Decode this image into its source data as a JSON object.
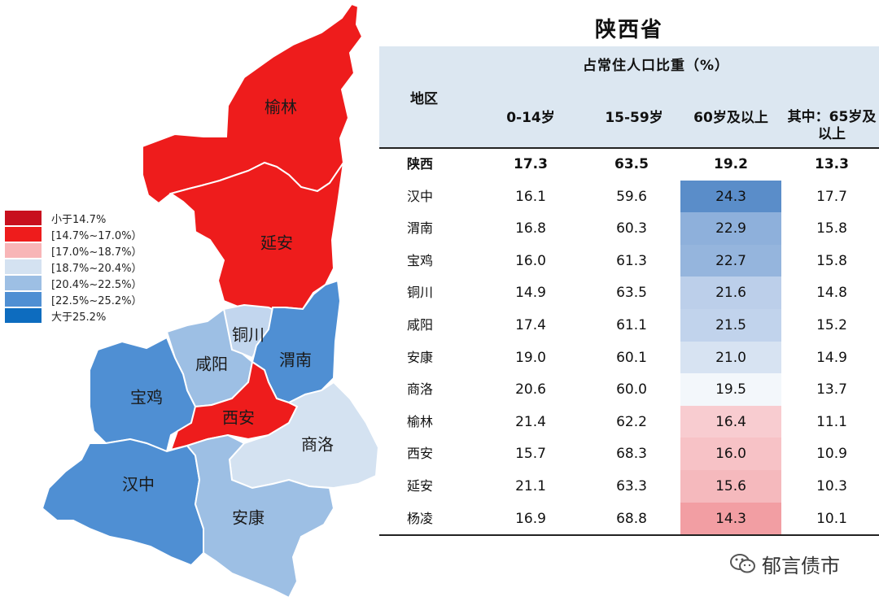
{
  "legend": [
    {
      "label": "小于14.7%",
      "color": "#c8101e"
    },
    {
      "label": "[14.7%~17.0%）",
      "color": "#ee1c1c"
    },
    {
      "label": "[17.0%~18.7%）",
      "color": "#f8b5b7"
    },
    {
      "label": "[18.7%~20.4%）",
      "color": "#d4e2f1"
    },
    {
      "label": "[20.4%~22.5%）",
      "color": "#9dbfe4"
    },
    {
      "label": "[22.5%~25.2%）",
      "color": "#4f8fd3"
    },
    {
      "label": "大于25.2%",
      "color": "#0d6cbf"
    }
  ],
  "map": {
    "regions": [
      {
        "name": "榆林",
        "color": "#ee1c1c"
      },
      {
        "name": "延安",
        "color": "#ee1c1c"
      },
      {
        "name": "铜川",
        "color": "#c2d6ee"
      },
      {
        "name": "渭南",
        "color": "#4f8fd3"
      },
      {
        "name": "咸阳",
        "color": "#9dbfe4"
      },
      {
        "name": "宝鸡",
        "color": "#4f8fd3"
      },
      {
        "name": "西安",
        "color": "#ee1c1c"
      },
      {
        "name": "商洛",
        "color": "#d4e2f1"
      },
      {
        "name": "汉中",
        "color": "#4f8fd3"
      },
      {
        "name": "安康",
        "color": "#9dbfe4"
      }
    ]
  },
  "table": {
    "title": "陕西省",
    "subheader": "占常住人口比重（%）",
    "col_region": "地区",
    "columns": [
      "0-14岁",
      "15-59岁",
      "60岁及以上",
      "其中：65岁及以上"
    ],
    "rows": [
      {
        "region": "陕西",
        "values": [
          "17.3",
          "63.5",
          "19.2",
          "13.3"
        ],
        "highlight": ""
      },
      {
        "region": "汉中",
        "values": [
          "16.1",
          "59.6",
          "24.3",
          "17.7"
        ],
        "highlight": "#5a8dc9"
      },
      {
        "region": "渭南",
        "values": [
          "16.8",
          "60.3",
          "22.9",
          "15.8"
        ],
        "highlight": "#8eb0db"
      },
      {
        "region": "宝鸡",
        "values": [
          "16.0",
          "61.3",
          "22.7",
          "15.8"
        ],
        "highlight": "#95b5dd"
      },
      {
        "region": "铜川",
        "values": [
          "14.9",
          "63.5",
          "21.6",
          "14.8"
        ],
        "highlight": "#bccfea"
      },
      {
        "region": "咸阳",
        "values": [
          "17.4",
          "61.1",
          "21.5",
          "15.2"
        ],
        "highlight": "#c1d3ec"
      },
      {
        "region": "安康",
        "values": [
          "19.0",
          "60.1",
          "21.0",
          "14.9"
        ],
        "highlight": "#d7e3f2"
      },
      {
        "region": "商洛",
        "values": [
          "20.6",
          "60.0",
          "19.5",
          "13.7"
        ],
        "highlight": "#f3f7fb"
      },
      {
        "region": "榆林",
        "values": [
          "21.4",
          "62.2",
          "16.4",
          "11.1"
        ],
        "highlight": "#f8ccd0"
      },
      {
        "region": "西安",
        "values": [
          "15.7",
          "68.3",
          "16.0",
          "10.9"
        ],
        "highlight": "#f7c2c6"
      },
      {
        "region": "延安",
        "values": [
          "21.1",
          "63.3",
          "15.6",
          "10.3"
        ],
        "highlight": "#f5b9bd"
      },
      {
        "region": "杨凌",
        "values": [
          "16.9",
          "68.8",
          "14.3",
          "10.1"
        ],
        "highlight": "#f29ea3"
      }
    ]
  },
  "watermark": "郁言债市"
}
